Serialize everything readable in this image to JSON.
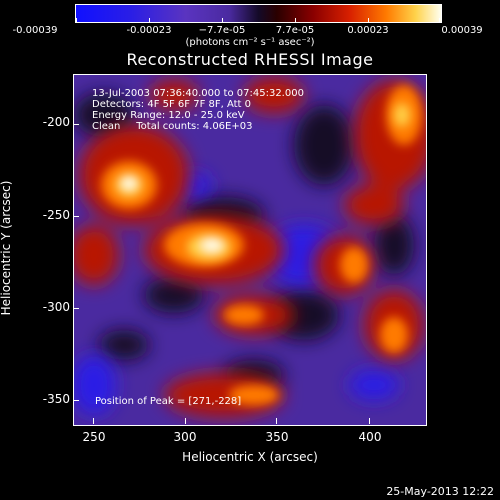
{
  "colorbar": {
    "labels": [
      "-0.00039",
      "-0.00023",
      "−7.7e-05",
      "7.7e-05",
      "0.00023",
      "0.00039"
    ],
    "units_text": "(photons cm⁻² s⁻¹ asec⁻²)"
  },
  "title": "Reconstructed RHESSI Image",
  "info": {
    "time_range": "13-Jul-2003 07:36:40.000 to 07:45:32.000",
    "detectors": "Detectors: 4F 5F 6F 7F 8F, Att 0",
    "energy": "Energy Range: 12.0 - 25.0 keV",
    "clean": "Clean     Total counts: 4.06E+03",
    "peak": "Position of Peak = [271,-228]"
  },
  "axes": {
    "xlabel": "Heliocentric X (arcsec)",
    "ylabel": "Heliocentric Y (arcsec)",
    "xticks": [
      "250",
      "300",
      "350",
      "400"
    ],
    "yticks": [
      "-200",
      "-250",
      "-300",
      "-350"
    ]
  },
  "timestamp": "25-May-2013 12:22",
  "colors": {
    "low": "#1010ff",
    "mid_low": "#4a2aa0",
    "dark": "#140a28",
    "mid_high": "#d82000",
    "high": "#fffff0"
  }
}
